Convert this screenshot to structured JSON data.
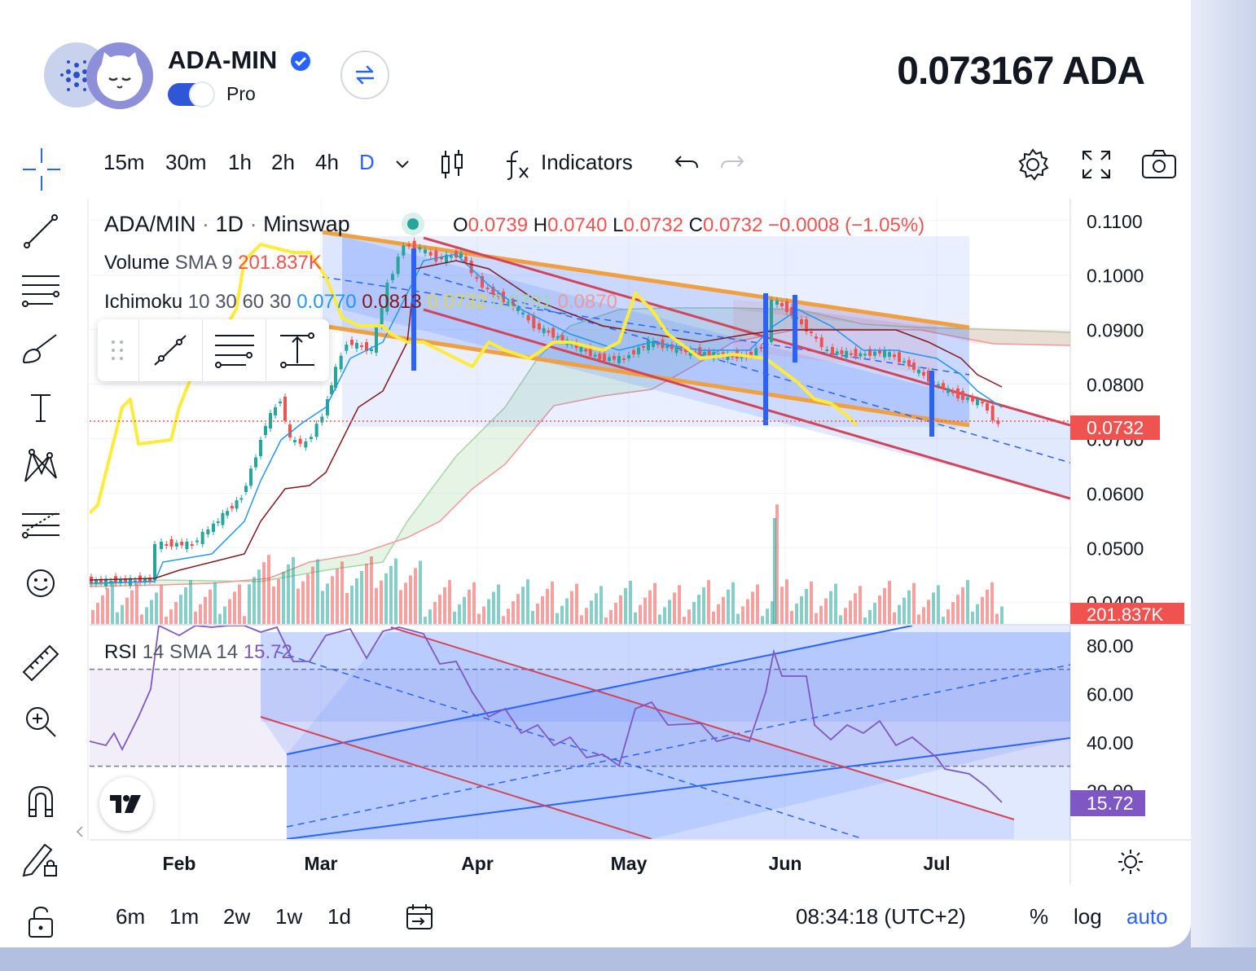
{
  "header": {
    "pair_name": "ADA-MIN",
    "plan_label": "Pro",
    "price": "0.073167 ADA"
  },
  "toolbar": {
    "intervals": [
      "15m",
      "30m",
      "1h",
      "2h",
      "4h",
      "D"
    ],
    "active_interval": "D",
    "indicators_label": "Indicators"
  },
  "legend": {
    "symbol": "ADA/MIN",
    "interval": "1D",
    "exchange": "Minswap",
    "open_label": "O",
    "open": "0.0739",
    "high_label": "H",
    "high": "0.0740",
    "low_label": "L",
    "low": "0.0732",
    "close_label": "C",
    "close": "0.0732",
    "change": "−0.0008 (−1.05%)",
    "volume_label": "Volume",
    "volume_params": "SMA 9",
    "volume_value": "201.837K",
    "ichimoku_label": "Ichimoku",
    "ichimoku_params": "10 30 60 30",
    "ichimoku_values": [
      "0.0770",
      "0.0813",
      "0.0732",
      "0.0791",
      "0.0870"
    ],
    "rsi_label": "RSI",
    "rsi_params": "14 SMA 14",
    "rsi_value": "15.72"
  },
  "price_axis": {
    "ticks": [
      "0.1100",
      "0.1000",
      "0.0900",
      "0.0800",
      "0.0700",
      "0.0600",
      "0.0500",
      "0.0400"
    ],
    "last_price": "0.0732",
    "volume_badge": "201.837K"
  },
  "rsi_axis": {
    "ticks": [
      "80.00",
      "60.00",
      "40.00",
      "20.00"
    ],
    "badge": "15.72"
  },
  "time_axis": {
    "labels": [
      "Feb",
      "Mar",
      "Apr",
      "May",
      "Jun",
      "Jul"
    ]
  },
  "bottom_bar": {
    "ranges": [
      "6m",
      "1m",
      "2w",
      "1w",
      "1d"
    ],
    "clock": "08:34:18 (UTC+2)",
    "percent_label": "%",
    "log_label": "log",
    "auto_label": "auto"
  },
  "colors": {
    "up": "#26a69a",
    "down": "#ef5350",
    "accent": "#2962ff",
    "rsi": "#7e57c2",
    "yellow": "#ffeb3b",
    "orange": "#f0a040"
  },
  "chart_data": [
    {
      "type": "candlestick",
      "x": [
        "Jan 15",
        "Feb 1",
        "Mar 1",
        "Apr 1",
        "May 1",
        "Jun 1",
        "Jul 1",
        "Jul 15"
      ],
      "close": [
        0.043,
        0.05,
        0.07,
        0.105,
        0.085,
        0.098,
        0.08,
        0.0732
      ],
      "ylim": [
        0.036,
        0.114
      ]
    },
    {
      "type": "line",
      "name": "RSI",
      "values": [
        39,
        60,
        85,
        52,
        33,
        58,
        45,
        33,
        15.72
      ],
      "ylim": [
        0,
        88
      ]
    }
  ]
}
